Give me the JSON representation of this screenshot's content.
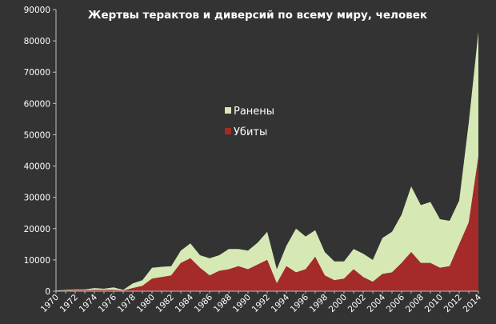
{
  "chart_data": {
    "type": "area",
    "title": "Жертвы терактов и диверсий по всему миру, человек",
    "xlabel": "",
    "ylabel": "",
    "x": [
      1970,
      1971,
      1972,
      1973,
      1974,
      1975,
      1976,
      1977,
      1978,
      1979,
      1980,
      1981,
      1982,
      1983,
      1984,
      1985,
      1986,
      1987,
      1988,
      1989,
      1990,
      1991,
      1992,
      1993,
      1994,
      1995,
      1996,
      1997,
      1998,
      1999,
      2000,
      2001,
      2002,
      2003,
      2004,
      2005,
      2006,
      2007,
      2008,
      2009,
      2010,
      2011,
      2012,
      2013,
      2014
    ],
    "x_tick_labels": [
      "1970",
      "1972",
      "1974",
      "1976",
      "1978",
      "1980",
      "1982",
      "1984",
      "1986",
      "1988",
      "1990",
      "1992",
      "1994",
      "1996",
      "1998",
      "2000",
      "2002",
      "2004",
      "2006",
      "2008",
      "2010",
      "2012",
      "2014"
    ],
    "ylim": [
      0,
      90000
    ],
    "y_ticks": [
      0,
      10000,
      20000,
      30000,
      40000,
      50000,
      60000,
      70000,
      80000,
      90000
    ],
    "y_tick_labels": [
      "0",
      "10000",
      "20000",
      "30000",
      "40000",
      "50000",
      "60000",
      "70000",
      "80000",
      "90000"
    ],
    "stacked": true,
    "series": [
      {
        "name": "Убиты",
        "color": "#a52a2a",
        "values": [
          100,
          200,
          300,
          300,
          400,
          400,
          400,
          200,
          1000,
          1700,
          4000,
          4500,
          5000,
          9000,
          10500,
          7500,
          5000,
          6500,
          7000,
          8000,
          7000,
          8500,
          10000,
          2500,
          8000,
          6000,
          7000,
          11000,
          5000,
          3500,
          4000,
          7000,
          4500,
          3000,
          5500,
          6000,
          9000,
          12500,
          9000,
          9000,
          7500,
          8000,
          15000,
          22000,
          43000
        ]
      },
      {
        "name": "Ранены",
        "color": "#d6e8b4",
        "values": [
          100,
          200,
          300,
          300,
          600,
          400,
          800,
          200,
          1500,
          1800,
          3500,
          3300,
          3000,
          4000,
          4800,
          4000,
          5500,
          5000,
          6500,
          5500,
          6000,
          7000,
          9000,
          4500,
          6500,
          14000,
          10500,
          8500,
          7500,
          6000,
          5500,
          6500,
          7500,
          7000,
          11500,
          13000,
          15500,
          21000,
          18500,
          19500,
          15500,
          14500,
          14000,
          32000,
          40000
        ]
      }
    ],
    "legend": {
      "placement": "center",
      "entries": [
        "Ранены",
        "Убиты"
      ]
    },
    "grid": false
  },
  "colors": {
    "background": "#333333",
    "text": "#ffffff",
    "axis": "#bdbdbd",
    "wounded": "#d6e8b4",
    "killed": "#a52a2a"
  }
}
